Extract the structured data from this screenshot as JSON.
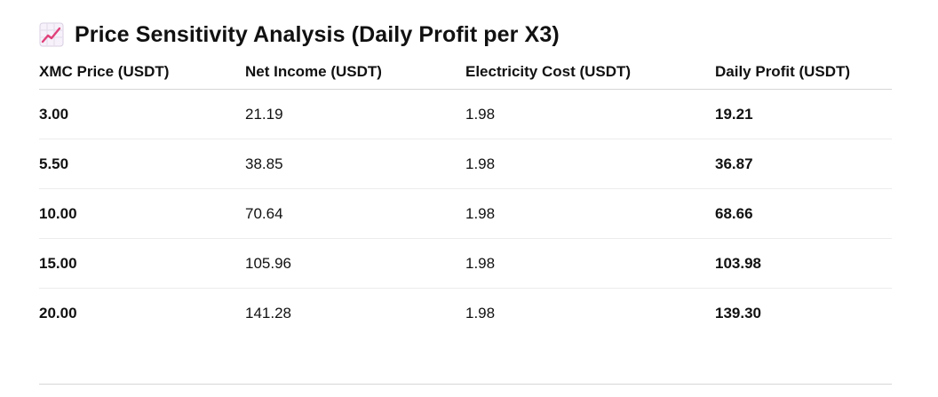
{
  "header": {
    "icon": "chart-increasing-icon",
    "title": "Price Sensitivity Analysis (Daily Profit per X3)"
  },
  "table": {
    "columns": [
      "XMC Price (USDT)",
      "Net Income (USDT)",
      "Electricity Cost (USDT)",
      "Daily Profit (USDT)"
    ],
    "rows": [
      [
        "3.00",
        "21.19",
        "1.98",
        "19.21"
      ],
      [
        "5.50",
        "38.85",
        "1.98",
        "36.87"
      ],
      [
        "10.00",
        "70.64",
        "1.98",
        "68.66"
      ],
      [
        "15.00",
        "105.96",
        "1.98",
        "103.98"
      ],
      [
        "20.00",
        "141.28",
        "1.98",
        "139.30"
      ]
    ]
  },
  "colors": {
    "text": "#111111",
    "icon_line": "#e0407a",
    "icon_grid": "#d9cfe3",
    "divider": "#d6d6d6"
  }
}
